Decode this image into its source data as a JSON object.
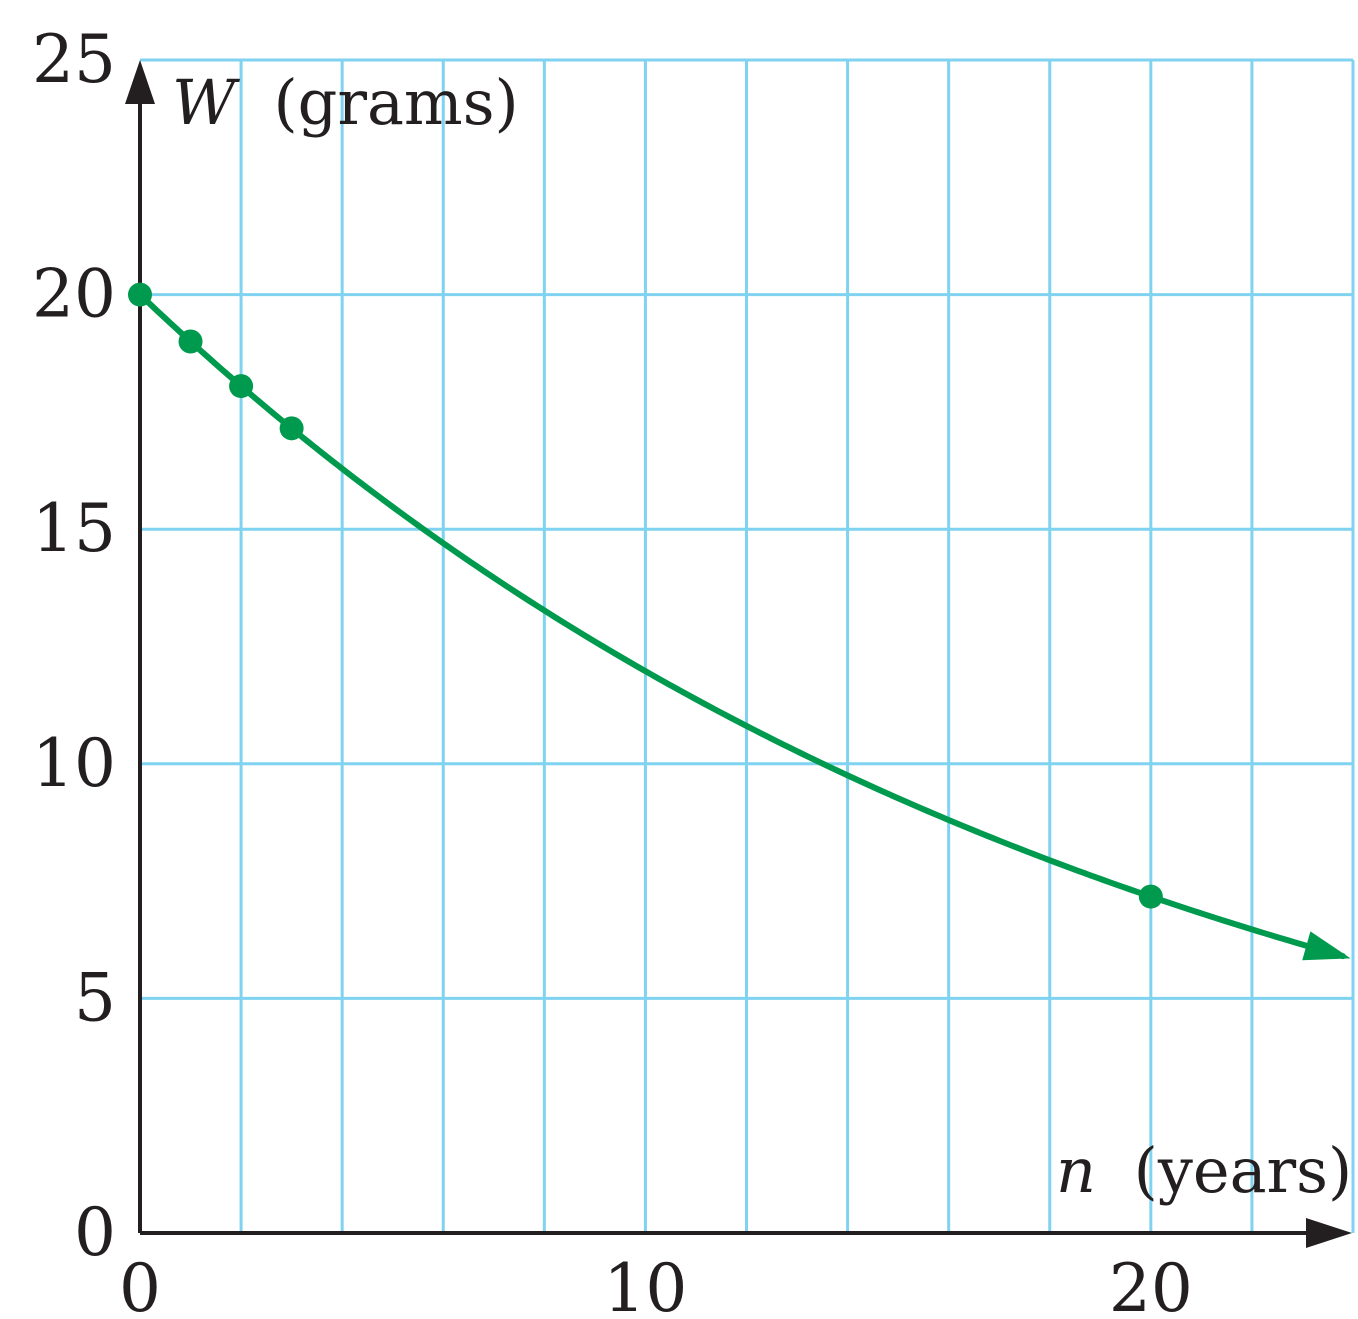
{
  "chart_data": {
    "type": "line",
    "xlabel": {
      "var": "n",
      "unit": "(years)"
    },
    "ylabel": {
      "var": "W",
      "unit": "(grams)"
    },
    "x_ticks": [
      "0",
      "10",
      "20"
    ],
    "y_ticks": [
      "0",
      "5",
      "10",
      "15",
      "20",
      "25"
    ],
    "xlim": [
      0,
      24
    ],
    "ylim": [
      0,
      25
    ],
    "grid": true,
    "grid_x_step": 2,
    "grid_y_step": 5,
    "curve": {
      "function": "W = 20*(0.95)^n",
      "n_range": [
        0,
        23.8
      ],
      "arrow_end": true
    },
    "points": [
      {
        "x": 0,
        "y": 20
      },
      {
        "x": 1,
        "y": 19
      },
      {
        "x": 2,
        "y": 18.05
      },
      {
        "x": 3,
        "y": 17.15
      },
      {
        "x": 20,
        "y": 7.17
      }
    ],
    "colors": {
      "curve": "#009a4e",
      "grid": "#7fd3f0",
      "axis": "#231f20",
      "text": "#231f20"
    }
  }
}
